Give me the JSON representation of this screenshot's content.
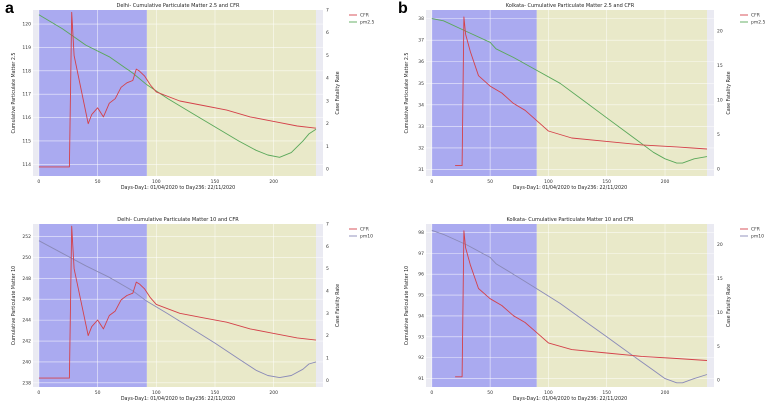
{
  "figure": {
    "panel_labels": [
      "a",
      "b"
    ]
  },
  "chart_data": [
    {
      "type": "line",
      "title": "Delhi- Cumulative Particulate Matter 2.5 and CFR",
      "xlabel": "Days-Day1: 01/04/2020 to Day236: 22/11/2020",
      "ylabel": "Cumulative Particulate Matter 2.5",
      "ylabel2": "Case Fatality Rate",
      "xlim": [
        -5,
        242
      ],
      "ylim": [
        113.5,
        120.6
      ],
      "y2lim": [
        -0.3,
        7.0
      ],
      "xticks": [
        0,
        50,
        100,
        150,
        200
      ],
      "yticks": [
        114,
        115,
        116,
        117,
        118,
        119,
        120
      ],
      "y2ticks": [
        0,
        1,
        2,
        3,
        4,
        5,
        6,
        7
      ],
      "shaded_regions": [
        {
          "x": [
            0,
            92
          ],
          "color": "#aaaaf0"
        },
        {
          "x": [
            92,
            236
          ],
          "color": "#e9e9c9"
        }
      ],
      "legend": [
        "CFR",
        "pm2.5"
      ],
      "legend_position": "top-right",
      "series": [
        {
          "name": "pm2.5",
          "axis": "left",
          "color": "#5aa85a",
          "x": [
            0,
            20,
            40,
            60,
            80,
            92,
            110,
            130,
            150,
            170,
            185,
            195,
            205,
            215,
            225,
            230,
            236
          ],
          "y": [
            120.4,
            119.8,
            119.1,
            118.6,
            117.9,
            117.4,
            116.8,
            116.2,
            115.6,
            115.0,
            114.6,
            114.4,
            114.3,
            114.5,
            115.0,
            115.3,
            115.5
          ]
        },
        {
          "name": "CFR",
          "axis": "right",
          "color": "#d4414a",
          "x": [
            0,
            26,
            28,
            30,
            38,
            42,
            45,
            50,
            55,
            60,
            65,
            70,
            75,
            80,
            83,
            86,
            90,
            95,
            100,
            120,
            140,
            160,
            180,
            200,
            220,
            236
          ],
          "y": [
            0.1,
            0.1,
            6.9,
            5.0,
            3.0,
            2.0,
            2.4,
            2.7,
            2.3,
            2.9,
            3.1,
            3.6,
            3.8,
            3.9,
            4.4,
            4.3,
            4.1,
            3.7,
            3.4,
            3.0,
            2.8,
            2.6,
            2.3,
            2.1,
            1.9,
            1.8
          ]
        }
      ]
    },
    {
      "type": "line",
      "title": "Kolkata- Cumulative Particulate Matter 2.5 and CFR",
      "xlabel": "Days-Day1: 01/04/2020 to Day236: 22/11/2020",
      "ylabel": "Cumulative Particulate Matter 2.5",
      "ylabel2": "Case Fatality Rate",
      "xlim": [
        -5,
        242
      ],
      "ylim": [
        30.7,
        38.4
      ],
      "y2lim": [
        -1,
        23
      ],
      "xticks": [
        0,
        50,
        100,
        150,
        200
      ],
      "yticks": [
        31,
        32,
        33,
        34,
        35,
        36,
        37,
        38
      ],
      "y2ticks": [
        0,
        5,
        10,
        15,
        20
      ],
      "shaded_regions": [
        {
          "x": [
            0,
            90
          ],
          "color": "#aaaaf0"
        },
        {
          "x": [
            90,
            236
          ],
          "color": "#e9e9c9"
        }
      ],
      "legend": [
        "CFR",
        "pm2.5"
      ],
      "legend_position": "top-right",
      "series": [
        {
          "name": "pm2.5",
          "axis": "left",
          "color": "#5aa85a",
          "x": [
            0,
            10,
            30,
            50,
            55,
            70,
            90,
            110,
            130,
            150,
            170,
            190,
            200,
            205,
            210,
            215,
            220,
            225,
            236
          ],
          "y": [
            38.0,
            37.9,
            37.4,
            36.9,
            36.6,
            36.2,
            35.6,
            35.0,
            34.2,
            33.4,
            32.6,
            31.8,
            31.5,
            31.4,
            31.3,
            31.3,
            31.4,
            31.5,
            31.6
          ]
        },
        {
          "name": "CFR",
          "axis": "right",
          "color": "#d4414a",
          "x": [
            20,
            26,
            27.5,
            29,
            33,
            40,
            50,
            60,
            70,
            80,
            90,
            100,
            120,
            150,
            180,
            210,
            236
          ],
          "y": [
            0.5,
            0.5,
            22,
            19.5,
            17,
            13.5,
            12,
            11,
            9.5,
            8.5,
            7.0,
            5.5,
            4.5,
            4.0,
            3.5,
            3.2,
            2.9
          ]
        }
      ]
    },
    {
      "type": "line",
      "title": "Delhi- Cumulative Particulate Matter 10 and CFR",
      "xlabel": "Days-Day1: 01/04/2020 to Day236: 22/11/2020",
      "ylabel": "Cumulative Particulate Matter 10",
      "ylabel2": "Case Fatality Rate",
      "xlim": [
        -5,
        242
      ],
      "ylim": [
        237.6,
        253.2
      ],
      "y2lim": [
        -0.3,
        7.0
      ],
      "xticks": [
        0,
        50,
        100,
        150,
        200
      ],
      "yticks": [
        238,
        240,
        242,
        244,
        246,
        248,
        250,
        252
      ],
      "y2ticks": [
        0,
        1,
        2,
        3,
        4,
        5,
        6,
        7
      ],
      "shaded_regions": [
        {
          "x": [
            0,
            92
          ],
          "color": "#aaaaf0"
        },
        {
          "x": [
            92,
            236
          ],
          "color": "#e9e9c9"
        }
      ],
      "legend": [
        "CFR",
        "pm10"
      ],
      "legend_position": "top-right",
      "series": [
        {
          "name": "pm10",
          "axis": "left",
          "color": "#8a8ab8",
          "x": [
            0,
            20,
            40,
            60,
            80,
            92,
            110,
            130,
            150,
            170,
            185,
            195,
            205,
            215,
            225,
            230,
            236
          ],
          "y": [
            251.6,
            250.4,
            249.2,
            248.1,
            246.8,
            245.8,
            244.6,
            243.2,
            241.8,
            240.3,
            239.2,
            238.7,
            238.5,
            238.7,
            239.3,
            239.8,
            240.0
          ]
        },
        {
          "name": "CFR",
          "axis": "right",
          "color": "#d4414a",
          "x": [
            0,
            26,
            28,
            30,
            38,
            42,
            45,
            50,
            55,
            60,
            65,
            70,
            75,
            80,
            83,
            86,
            90,
            95,
            100,
            120,
            140,
            160,
            180,
            200,
            220,
            236
          ],
          "y": [
            0.1,
            0.1,
            6.9,
            5.0,
            3.0,
            2.0,
            2.4,
            2.7,
            2.3,
            2.9,
            3.1,
            3.6,
            3.8,
            3.9,
            4.4,
            4.3,
            4.1,
            3.7,
            3.4,
            3.0,
            2.8,
            2.6,
            2.3,
            2.1,
            1.9,
            1.8
          ]
        }
      ]
    },
    {
      "type": "line",
      "title": "Kolkata- Cumulative Particulate Matter 10 and CFR",
      "xlabel": "Days-Day1: 01/04/2020 to Day236: 22/11/2020",
      "ylabel": "Cumulative Particulate Matter 10",
      "ylabel2": "Case Fatality Rate",
      "xlim": [
        -5,
        242
      ],
      "ylim": [
        90.6,
        98.4
      ],
      "y2lim": [
        -1,
        23
      ],
      "xticks": [
        0,
        50,
        100,
        150,
        200
      ],
      "yticks": [
        91,
        92,
        93,
        94,
        95,
        96,
        97,
        98
      ],
      "y2ticks": [
        0,
        5,
        10,
        15,
        20
      ],
      "shaded_regions": [
        {
          "x": [
            0,
            90
          ],
          "color": "#aaaaf0"
        },
        {
          "x": [
            90,
            236
          ],
          "color": "#e9e9c9"
        }
      ],
      "legend": [
        "CFR",
        "pm10"
      ],
      "legend_position": "top-right",
      "series": [
        {
          "name": "pm10",
          "axis": "left",
          "color": "#8a8ab8",
          "x": [
            0,
            10,
            30,
            50,
            55,
            70,
            90,
            110,
            130,
            150,
            170,
            190,
            200,
            205,
            210,
            215,
            220,
            225,
            236
          ],
          "y": [
            98.1,
            97.9,
            97.4,
            96.8,
            96.5,
            96.0,
            95.3,
            94.6,
            93.8,
            93.0,
            92.2,
            91.4,
            91.0,
            90.9,
            90.8,
            90.8,
            90.9,
            91.0,
            91.2
          ]
        },
        {
          "name": "CFR",
          "axis": "right",
          "color": "#d4414a",
          "x": [
            20,
            26,
            27.5,
            29,
            33,
            40,
            50,
            60,
            70,
            80,
            90,
            100,
            120,
            150,
            180,
            210,
            236
          ],
          "y": [
            0.5,
            0.5,
            22,
            19.5,
            17,
            13.5,
            12,
            11,
            9.5,
            8.5,
            7.0,
            5.5,
            4.5,
            4.0,
            3.5,
            3.2,
            2.9
          ]
        }
      ]
    }
  ]
}
